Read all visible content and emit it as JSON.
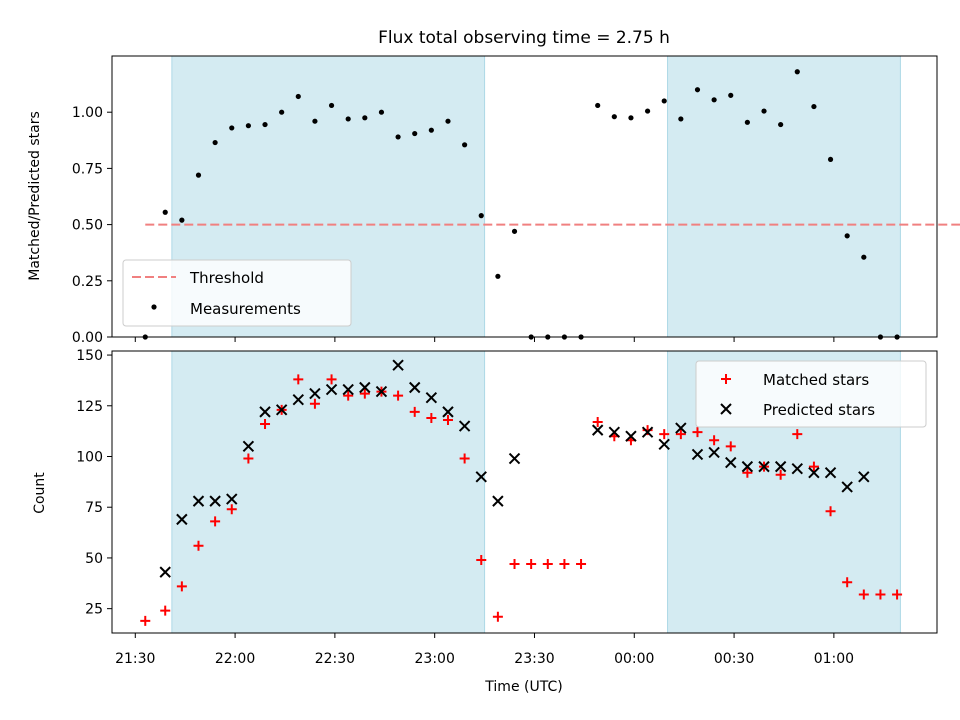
{
  "chart_data": [
    {
      "type": "scatter",
      "title": "Flux total observing time = 2.75 h",
      "xlabel": "",
      "ylabel": "Matched/Predicted stars",
      "ylim": [
        0,
        1.25
      ],
      "yticks": [
        "0.00",
        "0.25",
        "0.50",
        "0.75",
        "1.00"
      ],
      "xlim": [
        "21:23",
        "01:31"
      ],
      "shaded_intervals": [
        [
          "21:41",
          "23:15"
        ],
        [
          "00:10",
          "01:20"
        ]
      ],
      "threshold": {
        "name": "Threshold",
        "value": 0.5,
        "x_from": "21:33",
        "x_to": "01:52",
        "color": "#f08080"
      },
      "series": [
        {
          "name": "Measurements",
          "marker": "dot",
          "color": "#000000",
          "x": [
            "21:33",
            "21:39",
            "21:44",
            "21:49",
            "21:54",
            "21:59",
            "22:04",
            "22:09",
            "22:14",
            "22:19",
            "22:24",
            "22:29",
            "22:34",
            "22:39",
            "22:44",
            "22:49",
            "22:54",
            "22:59",
            "23:04",
            "23:09",
            "23:14",
            "23:19",
            "23:24",
            "23:29",
            "23:34",
            "23:39",
            "23:44",
            "23:49",
            "23:54",
            "23:59",
            "00:04",
            "00:09",
            "00:14",
            "00:19",
            "00:24",
            "00:29",
            "00:34",
            "00:39",
            "00:44",
            "00:49",
            "00:54",
            "00:59",
            "01:04",
            "01:09",
            "01:14",
            "01:19"
          ],
          "y": [
            0.0,
            0.555,
            0.52,
            0.72,
            0.865,
            0.93,
            0.94,
            0.945,
            1.0,
            1.07,
            0.96,
            1.03,
            0.97,
            0.975,
            1.0,
            0.89,
            0.905,
            0.92,
            0.96,
            0.855,
            0.54,
            0.27,
            0.47,
            0.0,
            0.0,
            0.0,
            0.0,
            1.03,
            0.98,
            0.975,
            1.005,
            1.05,
            0.97,
            1.1,
            1.055,
            1.075,
            0.955,
            1.005,
            0.945,
            1.18,
            1.025,
            0.79,
            0.45,
            0.355,
            0.0,
            0.0
          ]
        }
      ]
    },
    {
      "type": "scatter",
      "title": "",
      "xlabel": "Time (UTC)",
      "ylabel": "Count",
      "ylim": [
        13,
        152
      ],
      "yticks": [
        "25",
        "50",
        "75",
        "100",
        "125",
        "150"
      ],
      "xticks": [
        "21:30",
        "22:00",
        "22:30",
        "23:00",
        "23:30",
        "00:00",
        "00:30",
        "01:00"
      ],
      "shaded_intervals": [
        [
          "21:41",
          "23:15"
        ],
        [
          "00:10",
          "01:20"
        ]
      ],
      "legend": "top-right",
      "series": [
        {
          "name": "Matched stars",
          "marker": "plus",
          "color": "#ff0000",
          "x": [
            "21:33",
            "21:39",
            "21:44",
            "21:49",
            "21:54",
            "21:59",
            "22:04",
            "22:09",
            "22:14",
            "22:19",
            "22:24",
            "22:29",
            "22:34",
            "22:39",
            "22:44",
            "22:49",
            "22:54",
            "22:59",
            "23:04",
            "23:09",
            "23:14",
            "23:19",
            "23:24",
            "23:29",
            "23:34",
            "23:39",
            "23:44",
            "23:49",
            "23:54",
            "23:59",
            "00:04",
            "00:09",
            "00:14",
            "00:19",
            "00:24",
            "00:29",
            "00:34",
            "00:39",
            "00:44",
            "00:49",
            "00:54",
            "00:59",
            "01:04",
            "01:09",
            "01:14",
            "01:19"
          ],
          "y": [
            19,
            24,
            36,
            56,
            68,
            74,
            99,
            116,
            123,
            138,
            126,
            138,
            130,
            131,
            132,
            130,
            122,
            119,
            118,
            99,
            49,
            21,
            47,
            47,
            47,
            47,
            47,
            117,
            110,
            108,
            113,
            111,
            111,
            112,
            108,
            105,
            92,
            95,
            91,
            111,
            95,
            73,
            38,
            32,
            32,
            32
          ]
        },
        {
          "name": "Predicted stars",
          "marker": "x",
          "color": "#000000",
          "x": [
            "21:39",
            "21:44",
            "21:49",
            "21:54",
            "21:59",
            "22:04",
            "22:09",
            "22:14",
            "22:19",
            "22:24",
            "22:29",
            "22:34",
            "22:39",
            "22:44",
            "22:49",
            "22:54",
            "22:59",
            "23:04",
            "23:09",
            "23:14",
            "23:19",
            "23:24",
            "23:49",
            "23:54",
            "23:59",
            "00:04",
            "00:09",
            "00:14",
            "00:19",
            "00:24",
            "00:29",
            "00:34",
            "00:39",
            "00:44",
            "00:49",
            "00:54",
            "00:59",
            "01:04",
            "01:09"
          ],
          "y": [
            43,
            69,
            78,
            78,
            79,
            105,
            122,
            123,
            128,
            131,
            133,
            133,
            134,
            132,
            145,
            134,
            129,
            122,
            115,
            90,
            78,
            99,
            113,
            112,
            110,
            112,
            106,
            114,
            101,
            102,
            97,
            95,
            95,
            95,
            94,
            92,
            92,
            85,
            90
          ]
        }
      ]
    }
  ]
}
